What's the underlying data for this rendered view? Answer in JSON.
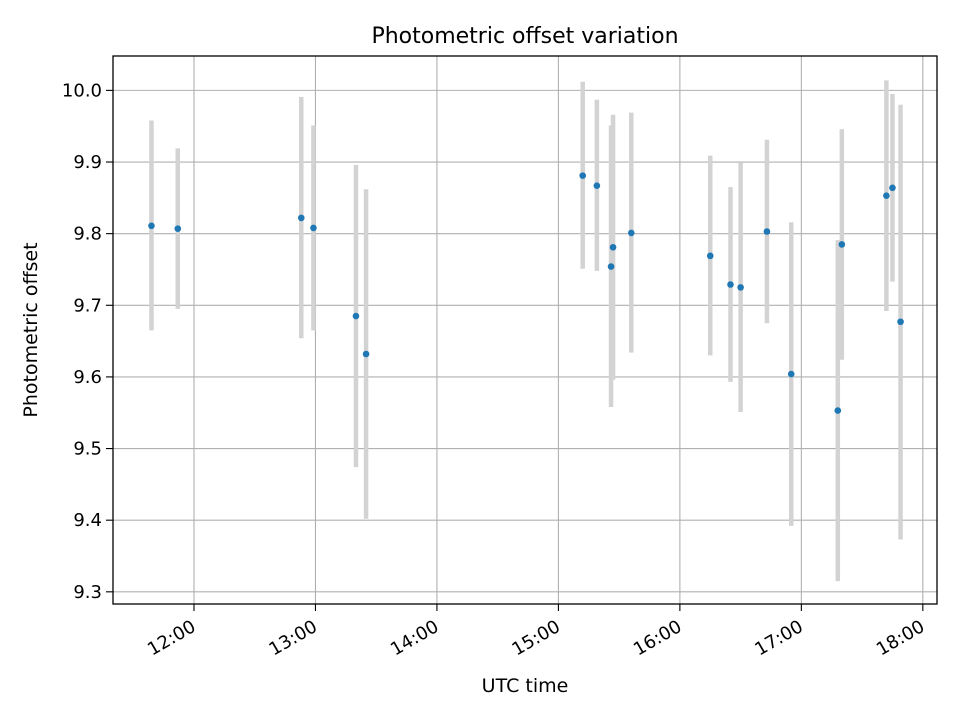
{
  "chart_data": {
    "type": "scatter",
    "title": "Photometric offset variation",
    "xlabel": "UTC time",
    "ylabel": "Photometric offset",
    "grid": true,
    "xlim": [
      "11:20",
      "18:07"
    ],
    "ylim": [
      9.283,
      10.048
    ],
    "x_ticks": [
      "12:00",
      "13:00",
      "14:00",
      "15:00",
      "16:00",
      "17:00",
      "18:00"
    ],
    "y_ticks": [
      "9.3",
      "9.4",
      "9.5",
      "9.6",
      "9.7",
      "9.8",
      "9.9",
      "10.0"
    ],
    "colors": {
      "points": "#1f77b4",
      "error_bars": "#d3d3d3",
      "grid": "#b0b0b0"
    },
    "series": [
      {
        "points": [
          {
            "time": "11:39",
            "y": 9.811,
            "y_low": 9.665,
            "y_high": 9.958
          },
          {
            "time": "11:52",
            "y": 9.807,
            "y_low": 9.695,
            "y_high": 9.919
          },
          {
            "time": "12:53",
            "y": 9.822,
            "y_low": 9.654,
            "y_high": 9.991
          },
          {
            "time": "12:59",
            "y": 9.808,
            "y_low": 9.665,
            "y_high": 9.951
          },
          {
            "time": "13:20",
            "y": 9.685,
            "y_low": 9.474,
            "y_high": 9.896
          },
          {
            "time": "13:25",
            "y": 9.632,
            "y_low": 9.402,
            "y_high": 9.862
          },
          {
            "time": "15:12",
            "y": 9.881,
            "y_low": 9.751,
            "y_high": 10.012
          },
          {
            "time": "15:19",
            "y": 9.867,
            "y_low": 9.748,
            "y_high": 9.987
          },
          {
            "time": "15:26",
            "y": 9.754,
            "y_low": 9.558,
            "y_high": 9.951
          },
          {
            "time": "15:27",
            "y": 9.781,
            "y_low": 9.596,
            "y_high": 9.966
          },
          {
            "time": "15:36",
            "y": 9.801,
            "y_low": 9.634,
            "y_high": 9.969
          },
          {
            "time": "16:15",
            "y": 9.769,
            "y_low": 9.63,
            "y_high": 9.909
          },
          {
            "time": "16:25",
            "y": 9.729,
            "y_low": 9.593,
            "y_high": 9.865
          },
          {
            "time": "16:30",
            "y": 9.725,
            "y_low": 9.551,
            "y_high": 9.899
          },
          {
            "time": "16:43",
            "y": 9.803,
            "y_low": 9.675,
            "y_high": 9.931
          },
          {
            "time": "16:55",
            "y": 9.604,
            "y_low": 9.392,
            "y_high": 9.816
          },
          {
            "time": "17:18",
            "y": 9.553,
            "y_low": 9.315,
            "y_high": 9.791
          },
          {
            "time": "17:20",
            "y": 9.785,
            "y_low": 9.624,
            "y_high": 9.946
          },
          {
            "time": "17:42",
            "y": 9.853,
            "y_low": 9.692,
            "y_high": 10.014
          },
          {
            "time": "17:45",
            "y": 9.864,
            "y_low": 9.733,
            "y_high": 9.995
          },
          {
            "time": "17:49",
            "y": 9.677,
            "y_low": 9.373,
            "y_high": 9.98
          }
        ]
      }
    ]
  }
}
